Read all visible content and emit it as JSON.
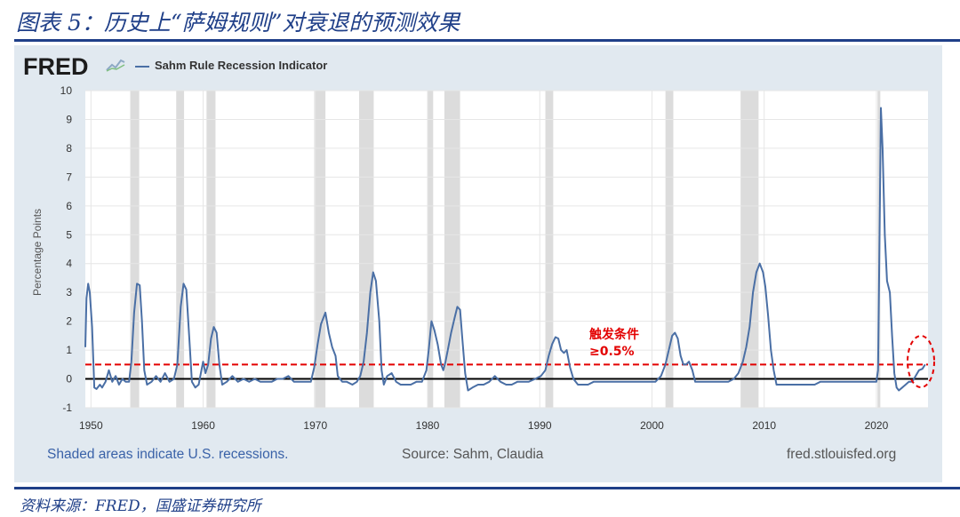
{
  "figure": {
    "title": "图表 5：历史上“萨姆规则”对衰退的预测效果",
    "source": "资料来源：FRED，国盛证券研究所"
  },
  "fred": {
    "logo": "FRED",
    "legend_label": "Sahm Rule Recession Indicator",
    "shaded_note": "Shaded areas indicate U.S. recessions.",
    "source_note": "Source: Sahm, Claudia",
    "site": "fred.stlouisfed.org"
  },
  "annotation": {
    "line1": "触发条件",
    "line2": "≥0.5%"
  },
  "colors": {
    "series": "#4a6fa5",
    "threshold": "#e30000",
    "recession_band": "#dcdcdc",
    "panel": "#e1e9f0",
    "title": "#1f3f88"
  },
  "chart_data": {
    "type": "line",
    "title": "",
    "xlabel": "",
    "ylabel": "Percentage Points",
    "xlim": [
      1949.5,
      2024.6
    ],
    "ylim": [
      -1,
      10
    ],
    "x_ticks": [
      1950,
      1960,
      1970,
      1980,
      1990,
      2000,
      2010,
      2020
    ],
    "y_ticks": [
      -1,
      0,
      1,
      2,
      3,
      4,
      5,
      6,
      7,
      8,
      9,
      10
    ],
    "threshold": 0.5,
    "zero_line": 0,
    "recessions": [
      [
        1953.5,
        1954.3
      ],
      [
        1957.6,
        1958.3
      ],
      [
        1960.3,
        1961.1
      ],
      [
        1969.9,
        1970.9
      ],
      [
        1973.9,
        1975.2
      ],
      [
        1980.0,
        1980.5
      ],
      [
        1981.5,
        1982.9
      ],
      [
        1990.5,
        1991.2
      ],
      [
        2001.2,
        2001.9
      ],
      [
        2007.9,
        2009.5
      ],
      [
        2020.1,
        2020.35
      ]
    ],
    "series": [
      {
        "name": "Sahm Rule Recession Indicator",
        "points": [
          [
            1949.5,
            1.1
          ],
          [
            1949.6,
            2.8
          ],
          [
            1949.75,
            3.3
          ],
          [
            1949.9,
            3.0
          ],
          [
            1950.1,
            1.8
          ],
          [
            1950.3,
            -0.3
          ],
          [
            1950.5,
            -0.35
          ],
          [
            1950.8,
            -0.2
          ],
          [
            1951.0,
            -0.3
          ],
          [
            1951.3,
            -0.1
          ],
          [
            1951.6,
            0.3
          ],
          [
            1951.9,
            -0.1
          ],
          [
            1952.2,
            0.1
          ],
          [
            1952.5,
            -0.2
          ],
          [
            1952.8,
            0.0
          ],
          [
            1953.1,
            -0.1
          ],
          [
            1953.4,
            -0.1
          ],
          [
            1953.6,
            0.6
          ],
          [
            1953.85,
            2.3
          ],
          [
            1954.1,
            3.3
          ],
          [
            1954.35,
            3.25
          ],
          [
            1954.55,
            2.0
          ],
          [
            1954.75,
            0.3
          ],
          [
            1955.0,
            -0.2
          ],
          [
            1955.4,
            -0.1
          ],
          [
            1955.8,
            0.1
          ],
          [
            1956.2,
            -0.1
          ],
          [
            1956.6,
            0.2
          ],
          [
            1957.0,
            -0.1
          ],
          [
            1957.4,
            0.0
          ],
          [
            1957.7,
            0.5
          ],
          [
            1958.0,
            2.5
          ],
          [
            1958.25,
            3.3
          ],
          [
            1958.5,
            3.1
          ],
          [
            1958.75,
            1.5
          ],
          [
            1959.0,
            -0.1
          ],
          [
            1959.3,
            -0.3
          ],
          [
            1959.6,
            -0.2
          ],
          [
            1959.85,
            0.3
          ],
          [
            1960.0,
            0.6
          ],
          [
            1960.2,
            0.2
          ],
          [
            1960.45,
            0.5
          ],
          [
            1960.7,
            1.4
          ],
          [
            1960.95,
            1.8
          ],
          [
            1961.2,
            1.6
          ],
          [
            1961.45,
            0.5
          ],
          [
            1961.7,
            -0.2
          ],
          [
            1962.1,
            -0.1
          ],
          [
            1962.6,
            0.1
          ],
          [
            1963.1,
            -0.1
          ],
          [
            1963.6,
            0.0
          ],
          [
            1964.1,
            -0.1
          ],
          [
            1964.6,
            0.0
          ],
          [
            1965.1,
            -0.1
          ],
          [
            1965.6,
            -0.1
          ],
          [
            1966.1,
            -0.1
          ],
          [
            1966.6,
            0.0
          ],
          [
            1967.1,
            0.0
          ],
          [
            1967.6,
            0.1
          ],
          [
            1968.1,
            -0.1
          ],
          [
            1968.6,
            -0.1
          ],
          [
            1969.1,
            -0.1
          ],
          [
            1969.6,
            -0.1
          ],
          [
            1969.9,
            0.4
          ],
          [
            1970.2,
            1.2
          ],
          [
            1970.5,
            1.9
          ],
          [
            1970.9,
            2.3
          ],
          [
            1971.2,
            1.6
          ],
          [
            1971.5,
            1.1
          ],
          [
            1971.8,
            0.8
          ],
          [
            1972.0,
            0.1
          ],
          [
            1972.4,
            -0.1
          ],
          [
            1972.8,
            -0.1
          ],
          [
            1973.3,
            -0.2
          ],
          [
            1973.7,
            -0.1
          ],
          [
            1974.0,
            0.1
          ],
          [
            1974.3,
            0.6
          ],
          [
            1974.6,
            1.6
          ],
          [
            1974.9,
            3.0
          ],
          [
            1975.15,
            3.7
          ],
          [
            1975.4,
            3.4
          ],
          [
            1975.7,
            2.0
          ],
          [
            1975.9,
            0.3
          ],
          [
            1976.1,
            -0.2
          ],
          [
            1976.4,
            0.1
          ],
          [
            1976.8,
            0.2
          ],
          [
            1977.2,
            -0.1
          ],
          [
            1977.6,
            -0.2
          ],
          [
            1978.0,
            -0.2
          ],
          [
            1978.5,
            -0.2
          ],
          [
            1979.0,
            -0.1
          ],
          [
            1979.5,
            -0.1
          ],
          [
            1979.9,
            0.3
          ],
          [
            1980.1,
            1.0
          ],
          [
            1980.35,
            2.0
          ],
          [
            1980.6,
            1.7
          ],
          [
            1980.9,
            1.2
          ],
          [
            1981.2,
            0.5
          ],
          [
            1981.4,
            0.3
          ],
          [
            1981.6,
            0.6
          ],
          [
            1981.85,
            1.1
          ],
          [
            1982.1,
            1.6
          ],
          [
            1982.4,
            2.1
          ],
          [
            1982.65,
            2.5
          ],
          [
            1982.9,
            2.4
          ],
          [
            1983.1,
            1.4
          ],
          [
            1983.35,
            0.2
          ],
          [
            1983.6,
            -0.4
          ],
          [
            1984.0,
            -0.3
          ],
          [
            1984.5,
            -0.2
          ],
          [
            1985.0,
            -0.2
          ],
          [
            1985.5,
            -0.1
          ],
          [
            1986.0,
            0.1
          ],
          [
            1986.5,
            -0.1
          ],
          [
            1987.0,
            -0.2
          ],
          [
            1987.5,
            -0.2
          ],
          [
            1988.0,
            -0.1
          ],
          [
            1988.5,
            -0.1
          ],
          [
            1989.0,
            -0.1
          ],
          [
            1989.6,
            0.0
          ],
          [
            1990.1,
            0.1
          ],
          [
            1990.5,
            0.3
          ],
          [
            1990.8,
            0.8
          ],
          [
            1991.1,
            1.2
          ],
          [
            1991.4,
            1.45
          ],
          [
            1991.65,
            1.4
          ],
          [
            1991.9,
            1.0
          ],
          [
            1992.15,
            0.9
          ],
          [
            1992.4,
            1.0
          ],
          [
            1992.7,
            0.4
          ],
          [
            1993.0,
            0.0
          ],
          [
            1993.4,
            -0.2
          ],
          [
            1993.8,
            -0.2
          ],
          [
            1994.3,
            -0.2
          ],
          [
            1994.8,
            -0.1
          ],
          [
            1995.3,
            -0.1
          ],
          [
            1995.8,
            -0.1
          ],
          [
            1996.3,
            -0.1
          ],
          [
            1996.8,
            -0.1
          ],
          [
            1997.3,
            -0.1
          ],
          [
            1997.8,
            -0.1
          ],
          [
            1998.3,
            -0.1
          ],
          [
            1998.8,
            -0.1
          ],
          [
            1999.3,
            -0.1
          ],
          [
            1999.8,
            -0.1
          ],
          [
            2000.3,
            -0.1
          ],
          [
            2000.8,
            0.1
          ],
          [
            2001.2,
            0.5
          ],
          [
            2001.5,
            1.0
          ],
          [
            2001.8,
            1.5
          ],
          [
            2002.05,
            1.6
          ],
          [
            2002.3,
            1.4
          ],
          [
            2002.55,
            0.8
          ],
          [
            2002.8,
            0.5
          ],
          [
            2003.05,
            0.5
          ],
          [
            2003.3,
            0.6
          ],
          [
            2003.6,
            0.3
          ],
          [
            2003.85,
            -0.1
          ],
          [
            2004.3,
            -0.1
          ],
          [
            2004.8,
            -0.1
          ],
          [
            2005.3,
            -0.1
          ],
          [
            2005.8,
            -0.1
          ],
          [
            2006.3,
            -0.1
          ],
          [
            2006.8,
            -0.1
          ],
          [
            2007.3,
            0.0
          ],
          [
            2007.7,
            0.2
          ],
          [
            2008.1,
            0.6
          ],
          [
            2008.4,
            1.1
          ],
          [
            2008.7,
            1.8
          ],
          [
            2009.0,
            3.0
          ],
          [
            2009.3,
            3.7
          ],
          [
            2009.6,
            4.0
          ],
          [
            2009.9,
            3.7
          ],
          [
            2010.1,
            3.2
          ],
          [
            2010.35,
            2.2
          ],
          [
            2010.6,
            1.0
          ],
          [
            2010.85,
            0.3
          ],
          [
            2011.1,
            -0.2
          ],
          [
            2011.5,
            -0.2
          ],
          [
            2012.0,
            -0.2
          ],
          [
            2012.5,
            -0.2
          ],
          [
            2013.0,
            -0.2
          ],
          [
            2013.5,
            -0.2
          ],
          [
            2014.0,
            -0.2
          ],
          [
            2014.5,
            -0.2
          ],
          [
            2015.0,
            -0.1
          ],
          [
            2015.5,
            -0.1
          ],
          [
            2016.0,
            -0.1
          ],
          [
            2016.5,
            -0.1
          ],
          [
            2017.0,
            -0.1
          ],
          [
            2017.5,
            -0.1
          ],
          [
            2018.0,
            -0.1
          ],
          [
            2018.5,
            -0.1
          ],
          [
            2019.0,
            -0.1
          ],
          [
            2019.5,
            -0.1
          ],
          [
            2020.0,
            -0.1
          ],
          [
            2020.15,
            0.3
          ],
          [
            2020.3,
            5.5
          ],
          [
            2020.4,
            9.4
          ],
          [
            2020.55,
            8.0
          ],
          [
            2020.75,
            5.0
          ],
          [
            2020.95,
            3.4
          ],
          [
            2021.2,
            3.0
          ],
          [
            2021.4,
            1.5
          ],
          [
            2021.6,
            0.2
          ],
          [
            2021.8,
            -0.3
          ],
          [
            2022.0,
            -0.4
          ],
          [
            2022.3,
            -0.3
          ],
          [
            2022.6,
            -0.2
          ],
          [
            2022.9,
            -0.1
          ],
          [
            2023.2,
            -0.1
          ],
          [
            2023.5,
            0.1
          ],
          [
            2023.8,
            0.3
          ],
          [
            2024.1,
            0.35
          ],
          [
            2024.35,
            0.5
          ]
        ]
      }
    ]
  }
}
